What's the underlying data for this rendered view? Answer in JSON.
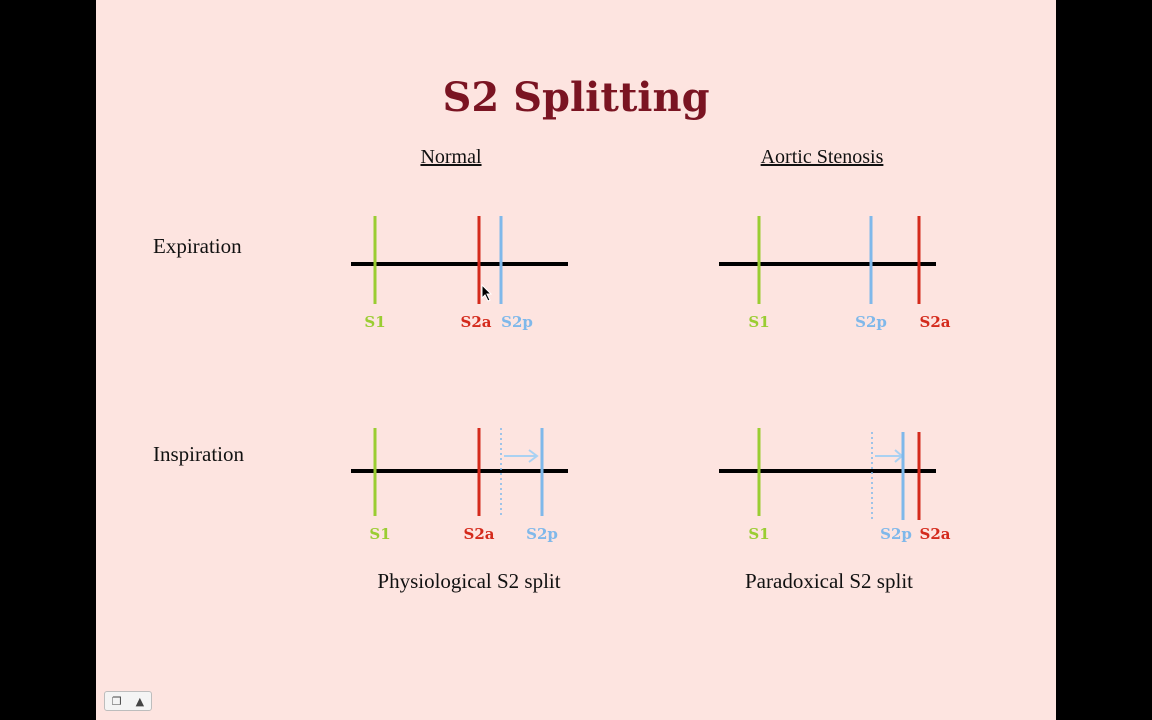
{
  "title": "S2 Splitting",
  "columns": {
    "normal": "Normal",
    "aortic": "Aortic Stenosis"
  },
  "rows": {
    "expiration": "Expiration",
    "inspiration": "Inspiration"
  },
  "captions": {
    "normal": "Physiological S2 split",
    "aortic": "Paradoxical S2 split"
  },
  "labels": {
    "s1": "S1",
    "s2a": "S2a",
    "s2p": "S2p"
  },
  "colors": {
    "s1": "#9acd32",
    "s2a": "#d42a1c",
    "s2p": "#7fb8ea",
    "title": "#7a1422",
    "background": "#fde4e0"
  },
  "toolbar": {
    "menu_icon": "slides-icon",
    "up_icon": "up-arrow-icon"
  }
}
